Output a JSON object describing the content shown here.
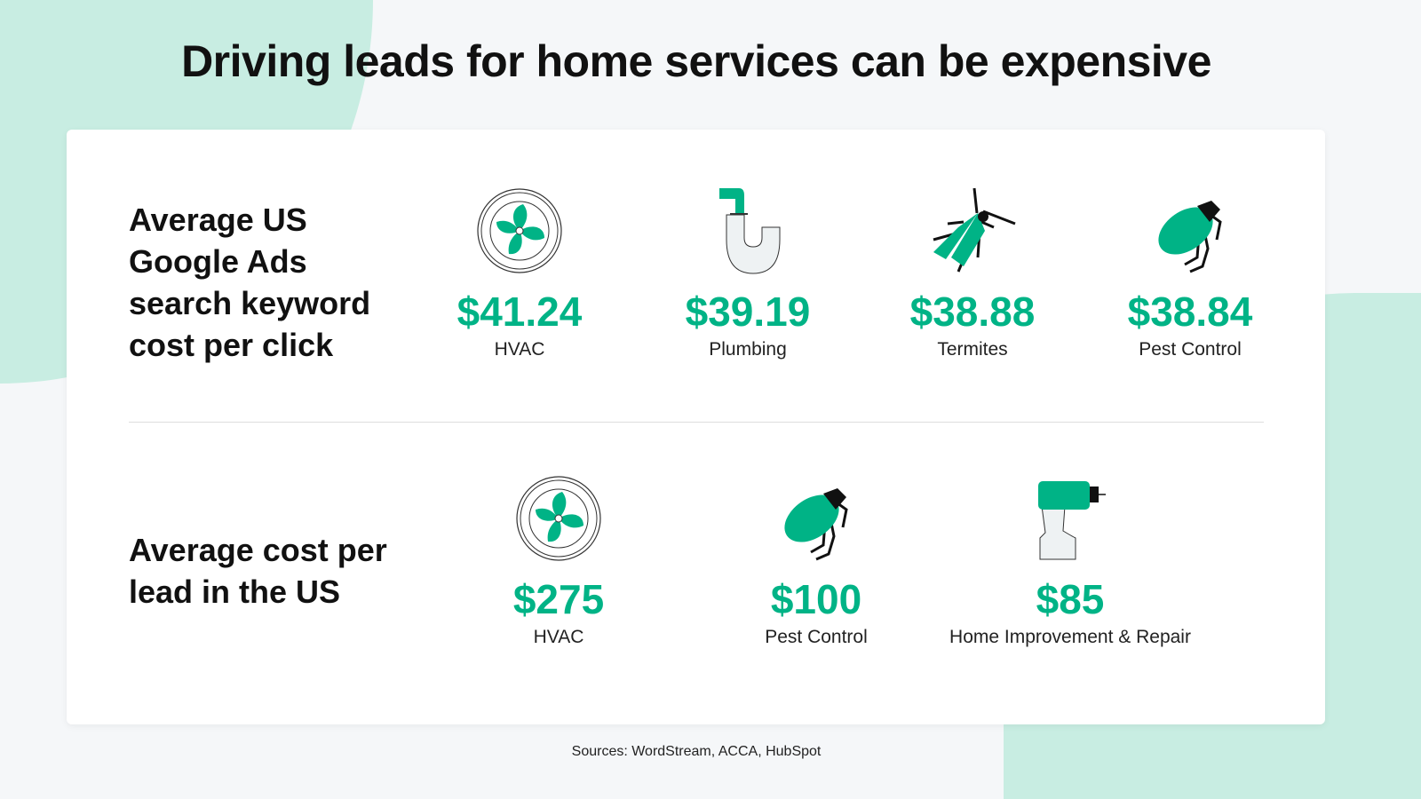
{
  "title": "Driving leads for home services can be expensive",
  "colors": {
    "accent": "#00b386",
    "background": "#f5f7f9",
    "blob": "#c8ede2"
  },
  "cpc_section": {
    "label": "Average US Google Ads search keyword cost per click",
    "items": [
      {
        "value": "$41.24",
        "label": "HVAC",
        "icon": "fan-icon"
      },
      {
        "value": "$39.19",
        "label": "Plumbing",
        "icon": "pipe-icon"
      },
      {
        "value": "$38.88",
        "label": "Termites",
        "icon": "termite-icon"
      },
      {
        "value": "$38.84",
        "label": "Pest Control",
        "icon": "beetle-icon"
      }
    ]
  },
  "cpl_section": {
    "label": "Average cost per lead in the US",
    "items": [
      {
        "value": "$275",
        "label": "HVAC",
        "icon": "fan-icon"
      },
      {
        "value": "$100",
        "label": "Pest Control",
        "icon": "beetle-icon"
      },
      {
        "value": "$85",
        "label": "Home Improvement & Repair",
        "icon": "drill-icon"
      }
    ]
  },
  "sources": "Sources: WordStream, ACCA, HubSpot"
}
